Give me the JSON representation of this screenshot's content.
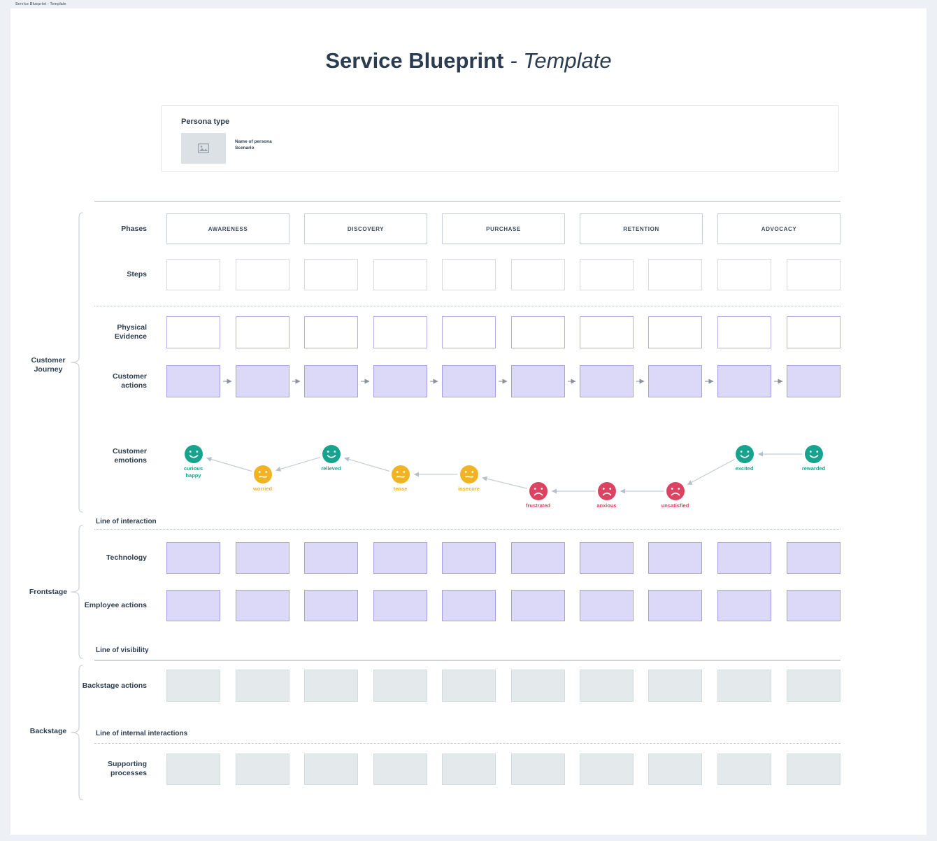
{
  "page": {
    "tab_title": "Service Blueprint - Template"
  },
  "title": {
    "main": "Service Blueprint",
    "suffix": "- Template"
  },
  "persona": {
    "heading": "Persona type",
    "name": "Name of persona",
    "scenario": "Scenario",
    "image_icon": "image-placeholder-icon"
  },
  "phases": [
    "AWARENESS",
    "DISCOVERY",
    "PURCHASE",
    "RETENTION",
    "ADVOCACY"
  ],
  "rows": {
    "phases": "Phases",
    "steps": "Steps",
    "physical_evidence": "Physical Evidence",
    "customer_actions": "Customer actions",
    "customer_emotions": "Customer emotions",
    "technology": "Technology",
    "employee_actions": "Employee actions",
    "backstage_actions": "Backstage actions",
    "supporting_processes": "Supporting processes"
  },
  "separators": {
    "interaction": "Line of interaction",
    "visibility": "Line of visibility",
    "internal": "Line of internal interactions"
  },
  "groups": [
    {
      "label": "Customer Journey"
    },
    {
      "label": "Frontstage"
    },
    {
      "label": "Backstage"
    }
  ],
  "grid": {
    "total_columns": 10,
    "columns_per_phase": 2
  },
  "emotions": {
    "sequence": [
      {
        "col": 0,
        "lines": [
          "curious",
          "happy"
        ],
        "sentiment": "positive",
        "level": "high"
      },
      {
        "col": 1,
        "lines": [
          "worried"
        ],
        "sentiment": "caution",
        "level": "mid"
      },
      {
        "col": 2,
        "lines": [
          "relieved"
        ],
        "sentiment": "positive",
        "level": "high"
      },
      {
        "col": 3,
        "lines": [
          "tense"
        ],
        "sentiment": "caution",
        "level": "mid"
      },
      {
        "col": 4,
        "lines": [
          "insecure"
        ],
        "sentiment": "caution",
        "level": "mid"
      },
      {
        "col": 5,
        "lines": [
          "frustrated"
        ],
        "sentiment": "negative",
        "level": "low"
      },
      {
        "col": 6,
        "lines": [
          "anxious"
        ],
        "sentiment": "negative",
        "level": "low"
      },
      {
        "col": 7,
        "lines": [
          "unsatisfied"
        ],
        "sentiment": "negative",
        "level": "low"
      },
      {
        "col": 8,
        "lines": [
          "excited"
        ],
        "sentiment": "positive",
        "level": "high"
      },
      {
        "col": 9,
        "lines": [
          "rewarded"
        ],
        "sentiment": "positive",
        "level": "high"
      }
    ]
  },
  "colors": {
    "text": "#2d3e50",
    "positive": "#17a38e",
    "caution": "#f0b324",
    "negative": "#db4360",
    "purple_fill": "#dcd8f7",
    "purple_border": "#a79ee6",
    "gray_fill": "#e4e9ec",
    "gray_border": "#d2dbdf",
    "connector_gray": "#959ca2",
    "connector_light": "#c5cdd4"
  }
}
